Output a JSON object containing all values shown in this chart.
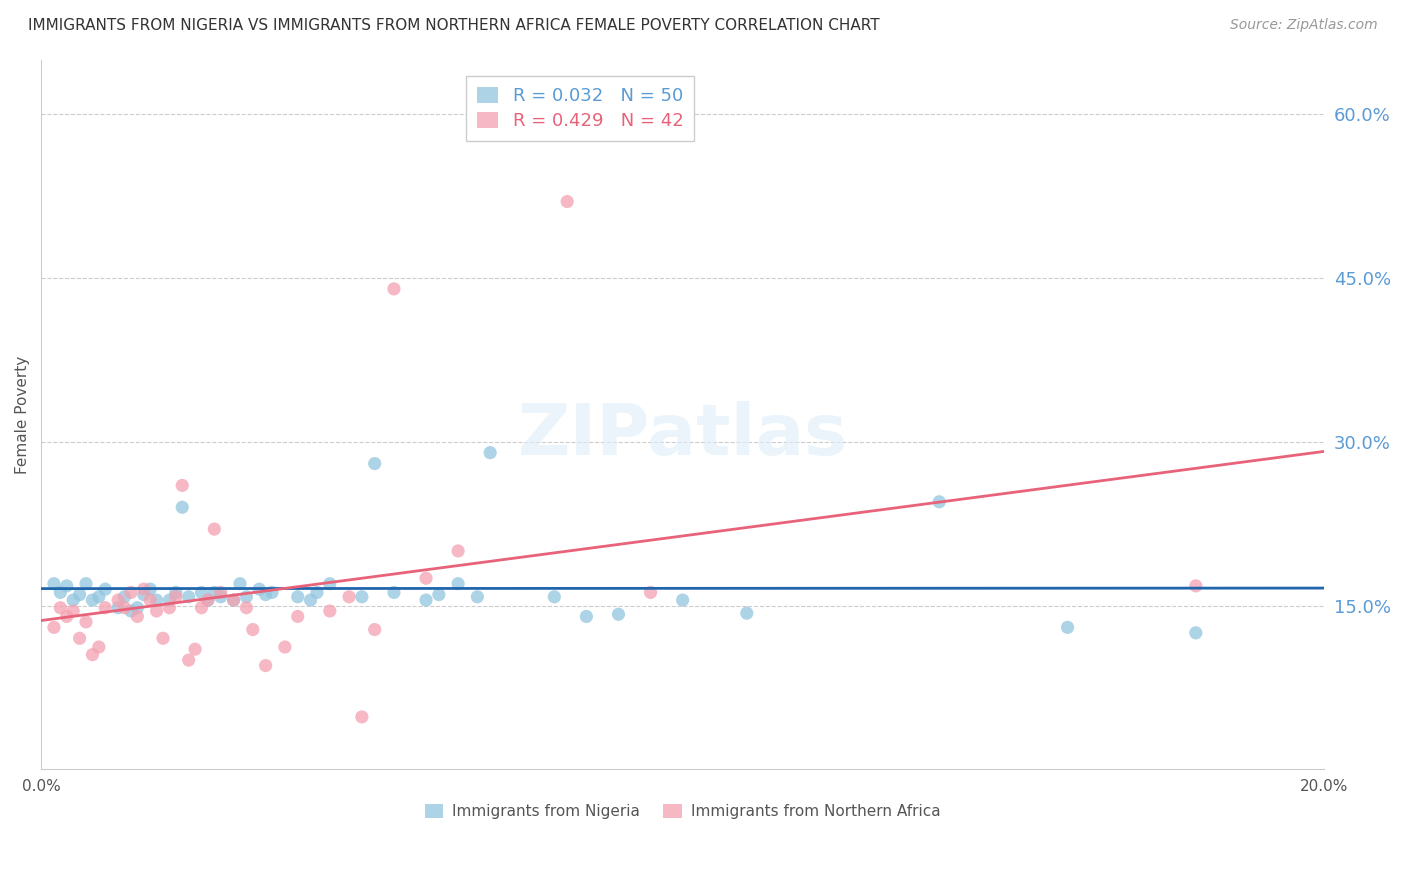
{
  "title": "IMMIGRANTS FROM NIGERIA VS IMMIGRANTS FROM NORTHERN AFRICA FEMALE POVERTY CORRELATION CHART",
  "source": "Source: ZipAtlas.com",
  "ylabel": "Female Poverty",
  "x_tick_labels": [
    "0.0%",
    "20.0%"
  ],
  "y_tick_labels_right": [
    "60.0%",
    "45.0%",
    "30.0%",
    "15.0%"
  ],
  "y_tick_values": [
    0.6,
    0.45,
    0.3,
    0.15
  ],
  "xlim": [
    0.0,
    0.2
  ],
  "ylim": [
    0.0,
    0.65
  ],
  "nigeria_R": 0.032,
  "nigeria_N": 50,
  "n_africa_R": 0.429,
  "n_africa_N": 42,
  "nigeria_color": "#92c5de",
  "n_africa_color": "#f4a0b0",
  "nigeria_line_color": "#2166ac",
  "n_africa_line_color": "#e8637a",
  "watermark": "ZIPatlas",
  "background_color": "#ffffff",
  "grid_color": "#cccccc",
  "right_label_color": "#5b9bd5",
  "title_color": "#333333",
  "nigeria_scatter": [
    [
      0.002,
      0.17
    ],
    [
      0.003,
      0.162
    ],
    [
      0.004,
      0.168
    ],
    [
      0.005,
      0.155
    ],
    [
      0.006,
      0.16
    ],
    [
      0.007,
      0.17
    ],
    [
      0.008,
      0.155
    ],
    [
      0.009,
      0.158
    ],
    [
      0.01,
      0.165
    ],
    [
      0.012,
      0.148
    ],
    [
      0.013,
      0.158
    ],
    [
      0.014,
      0.145
    ],
    [
      0.015,
      0.148
    ],
    [
      0.016,
      0.16
    ],
    [
      0.017,
      0.165
    ],
    [
      0.018,
      0.155
    ],
    [
      0.02,
      0.155
    ],
    [
      0.021,
      0.162
    ],
    [
      0.022,
      0.24
    ],
    [
      0.023,
      0.158
    ],
    [
      0.025,
      0.162
    ],
    [
      0.026,
      0.155
    ],
    [
      0.027,
      0.162
    ],
    [
      0.028,
      0.158
    ],
    [
      0.03,
      0.155
    ],
    [
      0.031,
      0.17
    ],
    [
      0.032,
      0.158
    ],
    [
      0.034,
      0.165
    ],
    [
      0.035,
      0.16
    ],
    [
      0.036,
      0.162
    ],
    [
      0.04,
      0.158
    ],
    [
      0.042,
      0.155
    ],
    [
      0.043,
      0.162
    ],
    [
      0.045,
      0.17
    ],
    [
      0.05,
      0.158
    ],
    [
      0.052,
      0.28
    ],
    [
      0.055,
      0.162
    ],
    [
      0.06,
      0.155
    ],
    [
      0.062,
      0.16
    ],
    [
      0.065,
      0.17
    ],
    [
      0.068,
      0.158
    ],
    [
      0.07,
      0.29
    ],
    [
      0.08,
      0.158
    ],
    [
      0.085,
      0.14
    ],
    [
      0.09,
      0.142
    ],
    [
      0.1,
      0.155
    ],
    [
      0.11,
      0.143
    ],
    [
      0.14,
      0.245
    ],
    [
      0.16,
      0.13
    ],
    [
      0.18,
      0.125
    ]
  ],
  "n_africa_scatter": [
    [
      0.002,
      0.13
    ],
    [
      0.003,
      0.148
    ],
    [
      0.004,
      0.14
    ],
    [
      0.005,
      0.145
    ],
    [
      0.006,
      0.12
    ],
    [
      0.007,
      0.135
    ],
    [
      0.008,
      0.105
    ],
    [
      0.009,
      0.112
    ],
    [
      0.01,
      0.148
    ],
    [
      0.012,
      0.155
    ],
    [
      0.013,
      0.148
    ],
    [
      0.014,
      0.162
    ],
    [
      0.015,
      0.14
    ],
    [
      0.016,
      0.165
    ],
    [
      0.017,
      0.155
    ],
    [
      0.018,
      0.145
    ],
    [
      0.019,
      0.12
    ],
    [
      0.02,
      0.148
    ],
    [
      0.021,
      0.158
    ],
    [
      0.022,
      0.26
    ],
    [
      0.023,
      0.1
    ],
    [
      0.024,
      0.11
    ],
    [
      0.025,
      0.148
    ],
    [
      0.026,
      0.155
    ],
    [
      0.027,
      0.22
    ],
    [
      0.028,
      0.162
    ],
    [
      0.03,
      0.155
    ],
    [
      0.032,
      0.148
    ],
    [
      0.033,
      0.128
    ],
    [
      0.035,
      0.095
    ],
    [
      0.038,
      0.112
    ],
    [
      0.04,
      0.14
    ],
    [
      0.045,
      0.145
    ],
    [
      0.048,
      0.158
    ],
    [
      0.05,
      0.048
    ],
    [
      0.052,
      0.128
    ],
    [
      0.055,
      0.44
    ],
    [
      0.06,
      0.175
    ],
    [
      0.065,
      0.2
    ],
    [
      0.082,
      0.52
    ],
    [
      0.095,
      0.162
    ],
    [
      0.18,
      0.168
    ]
  ]
}
